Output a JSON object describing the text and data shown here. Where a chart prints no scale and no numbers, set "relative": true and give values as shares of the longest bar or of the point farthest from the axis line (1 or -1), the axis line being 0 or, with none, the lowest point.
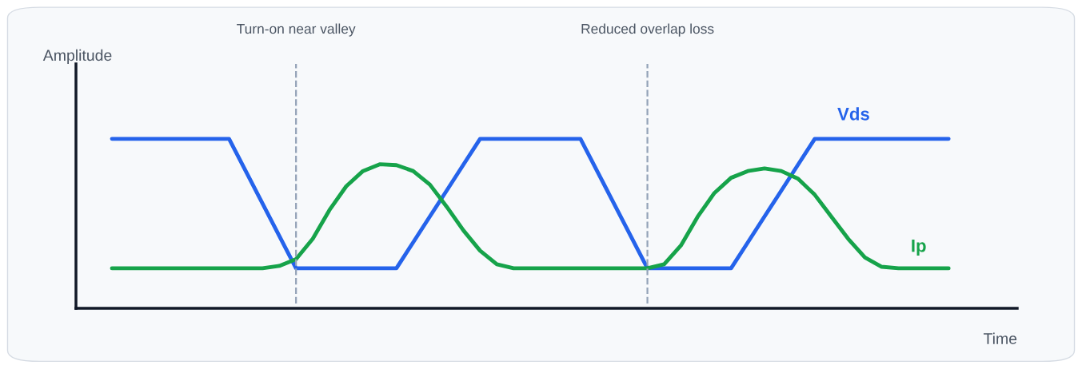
{
  "chart_data": {
    "type": "line",
    "relative": true,
    "xlabel": "Time",
    "ylabel": "Amplitude",
    "marker": "none",
    "line_style": "solid",
    "categories": [
      null,
      null,
      null,
      null,
      null,
      null,
      null,
      null,
      null,
      null,
      null,
      null,
      null,
      null,
      null,
      null,
      null,
      null,
      null,
      null,
      null,
      null,
      null,
      null,
      null,
      null,
      null,
      null,
      null,
      null,
      null,
      null,
      null,
      null,
      null,
      null,
      null,
      null,
      null,
      null,
      null,
      null,
      null,
      null,
      null,
      null,
      null,
      null,
      null,
      null,
      null
    ],
    "series": [
      {
        "name": "Vds",
        "color": "#2563eb",
        "values": [
          1,
          1,
          1,
          1,
          1,
          1,
          1,
          1,
          0.809,
          0.618,
          0.427,
          0.236,
          0.236,
          0.236,
          0.236,
          0.236,
          0.236,
          0.236,
          0.389,
          0.542,
          0.694,
          0.847,
          1,
          1,
          1,
          1,
          1,
          1,
          1,
          0.809,
          0.618,
          0.427,
          0.236,
          0.236,
          0.236,
          0.236,
          0.236,
          0.236,
          0.389,
          0.542,
          0.694,
          0.847,
          1,
          1,
          1,
          1,
          1,
          1,
          1,
          1,
          1
        ]
      },
      {
        "name": "Ip",
        "color": "#16a34a",
        "values": [
          0.236,
          0.236,
          0.236,
          0.236,
          0.236,
          0.236,
          0.236,
          0.236,
          0.236,
          0.236,
          0.25,
          0.29,
          0.41,
          0.58,
          0.72,
          0.81,
          0.85,
          0.845,
          0.81,
          0.73,
          0.6,
          0.46,
          0.34,
          0.26,
          0.236,
          0.236,
          0.236,
          0.236,
          0.236,
          0.236,
          0.236,
          0.236,
          0.236,
          0.26,
          0.37,
          0.54,
          0.68,
          0.77,
          0.81,
          0.825,
          0.81,
          0.765,
          0.67,
          0.54,
          0.41,
          0.3,
          0.245,
          0.236,
          0.236,
          0.236,
          0.236
        ]
      }
    ],
    "annotations": [
      "Turn-on near valley",
      "Reduced overlap loss"
    ]
  }
}
